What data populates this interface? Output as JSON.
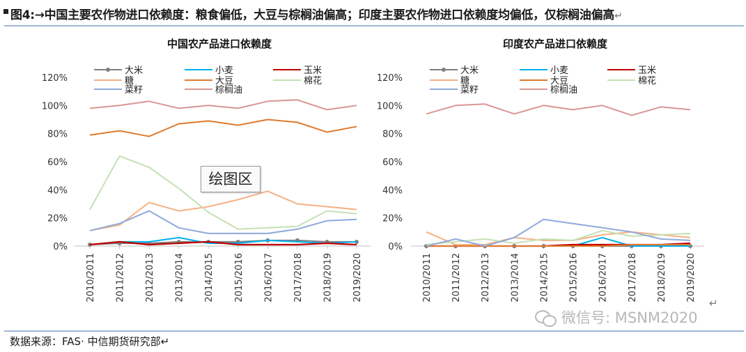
{
  "figure": {
    "caption": "图4:→中国主要农作物进口依赖度：粮食偏低，大豆与棕榈油偏高；印度主要农作物进口依赖度均偏低，仅棕榈油偏高",
    "return_mark": "↵",
    "source": "数据来源：FAS· 中信期货研究部↵",
    "watermark": "微信号: MSNM2020",
    "plot_area_badge": "绘图区",
    "para_mark": "↵"
  },
  "colors": {
    "大米": "#7f7f7f",
    "小麦": "#00b0f0",
    "玉米": "#c00000",
    "糖": "#f4b183",
    "大豆": "#e07b2e",
    "棉花": "#c5e0b4",
    "菜籽": "#8ea9db",
    "棕榈油": "#d99694",
    "rule": "#9fb6d6"
  },
  "chart_data": [
    {
      "type": "line",
      "title": "中国农产品进口依赖度",
      "categories": [
        "2010/2011",
        "2011/2012",
        "2012/2013",
        "2013/2014",
        "2014/2015",
        "2015/2016",
        "2016/2017",
        "2017/2018",
        "2018/2019",
        "2019/2020"
      ],
      "y_ticks": [
        "0%",
        "20%",
        "40%",
        "60%",
        "80%",
        "100%",
        "120%"
      ],
      "ylim": [
        0,
        120
      ],
      "grid": false,
      "legend_position": "top",
      "series": [
        {
          "name": "大米",
          "values": [
            1,
            2,
            2,
            3,
            3,
            3,
            4,
            4,
            3,
            3
          ]
        },
        {
          "name": "小麦",
          "values": [
            1,
            3,
            3,
            6,
            2,
            2,
            4,
            3,
            2,
            3
          ]
        },
        {
          "name": "玉米",
          "values": [
            1,
            3,
            1,
            2,
            3,
            1,
            1,
            1,
            2,
            1
          ]
        },
        {
          "name": "糖",
          "values": [
            11,
            15,
            31,
            25,
            28,
            33,
            39,
            30,
            28,
            26
          ]
        },
        {
          "name": "大豆",
          "values": [
            79,
            82,
            78,
            87,
            89,
            86,
            90,
            88,
            81,
            85
          ]
        },
        {
          "name": "棉花",
          "values": [
            26,
            64,
            56,
            41,
            24,
            12,
            13,
            14,
            25,
            23
          ]
        },
        {
          "name": "菜籽",
          "values": [
            11,
            16,
            25,
            13,
            9,
            9,
            9,
            12,
            18,
            19
          ]
        },
        {
          "name": "棕榈油",
          "values": [
            98,
            100,
            103,
            98,
            100,
            98,
            103,
            104,
            97,
            100
          ]
        }
      ]
    },
    {
      "type": "line",
      "title": "印度农产品进口依赖度",
      "categories": [
        "2010/2011",
        "2011/2012",
        "2012/2013",
        "2013/2014",
        "2014/2015",
        "2015/2016",
        "2016/2017",
        "2017/2018",
        "2018/2019",
        "2019/2020"
      ],
      "y_ticks": [
        "0%",
        "20%",
        "40%",
        "60%",
        "80%",
        "100%",
        "120%"
      ],
      "ylim": [
        0,
        120
      ],
      "grid": false,
      "legend_position": "top",
      "series": [
        {
          "name": "大米",
          "values": [
            0,
            0,
            0,
            0,
            0,
            0,
            0,
            0,
            0,
            0
          ]
        },
        {
          "name": "小麦",
          "values": [
            0,
            0,
            0,
            0,
            0,
            0,
            6,
            0,
            0,
            0
          ]
        },
        {
          "name": "玉米",
          "values": [
            0,
            0,
            0,
            0,
            0,
            1,
            1,
            1,
            1,
            2
          ]
        },
        {
          "name": "糖",
          "values": [
            10,
            1,
            1,
            6,
            4,
            4,
            8,
            10,
            8,
            6
          ]
        },
        {
          "name": "大豆",
          "values": [
            0,
            0,
            0,
            0,
            0,
            0,
            0,
            1,
            1,
            1
          ]
        },
        {
          "name": "棉花",
          "values": [
            1,
            3,
            5,
            2,
            5,
            4,
            11,
            7,
            8,
            9
          ]
        },
        {
          "name": "菜籽",
          "values": [
            0,
            5,
            0,
            6,
            19,
            16,
            13,
            10,
            5,
            4
          ]
        },
        {
          "name": "棕榈油",
          "values": [
            94,
            100,
            101,
            94,
            100,
            97,
            100,
            93,
            99,
            97
          ]
        }
      ]
    }
  ]
}
